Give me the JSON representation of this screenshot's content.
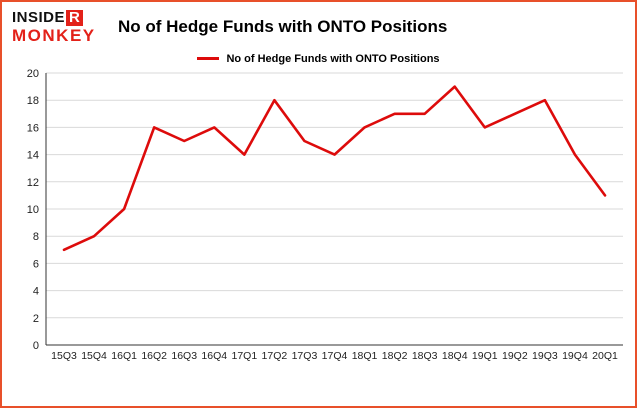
{
  "logo": {
    "line1_black": "INSIDE",
    "line1_red": "R",
    "line2": "MONKEY"
  },
  "header": {
    "title": "No of Hedge Funds with ONTO Positions"
  },
  "legend": {
    "label": "No of Hedge Funds with ONTO Positions"
  },
  "colors": {
    "border": "#e8502a",
    "line_red": "#dd0b0b",
    "grid": "#d9d9d9",
    "axis": "#333333",
    "tick_text": "#222222"
  },
  "chart_data": {
    "type": "line",
    "title": "No of Hedge Funds with ONTO Positions",
    "categories": [
      "15Q3",
      "15Q4",
      "16Q1",
      "16Q2",
      "16Q3",
      "16Q4",
      "17Q1",
      "17Q2",
      "17Q3",
      "17Q4",
      "18Q1",
      "18Q2",
      "18Q3",
      "18Q4",
      "19Q1",
      "19Q2",
      "19Q3",
      "19Q4",
      "20Q1"
    ],
    "values": [
      7,
      8,
      10,
      16,
      15,
      16,
      14,
      18,
      15,
      14,
      16,
      17,
      17,
      19,
      16,
      17,
      18,
      14,
      11
    ],
    "xlabel": "",
    "ylabel": "",
    "ylim": [
      0,
      20
    ],
    "ytick_step": 2,
    "grid": true,
    "legend_position": "top",
    "line_color": "#dd0b0b"
  }
}
